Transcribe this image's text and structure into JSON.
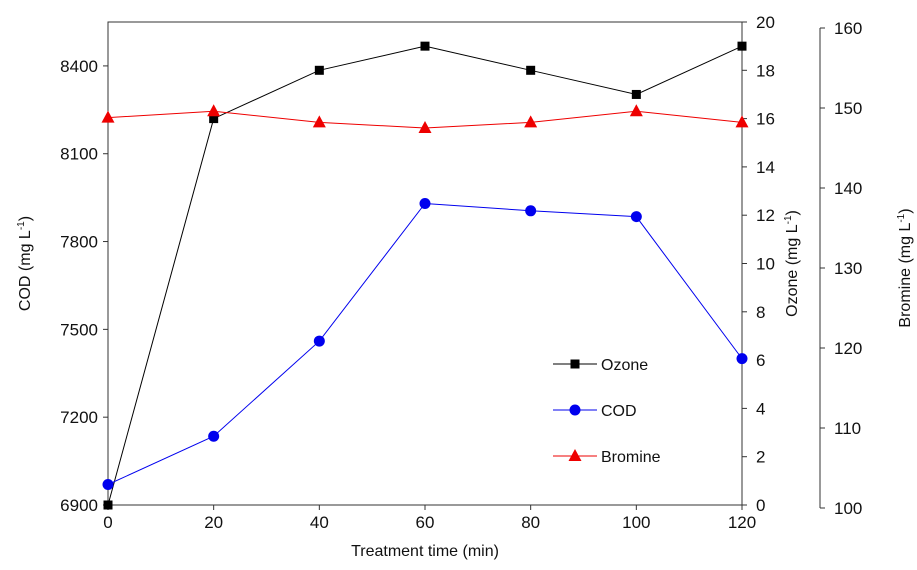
{
  "chart_data": {
    "type": "line",
    "x": [
      0,
      20,
      40,
      60,
      80,
      100,
      120
    ],
    "xlabel": "Treatment time (min)",
    "xlim": [
      0,
      120
    ],
    "xticks": [
      "0",
      "20",
      "40",
      "60",
      "80",
      "100",
      "120"
    ],
    "axes": {
      "left": {
        "label": "COD (mg L",
        "sup": "-1",
        "close": ")",
        "range": [
          6900,
          8550
        ],
        "ticks": [
          "6900",
          "7200",
          "7500",
          "7800",
          "8100",
          "8400"
        ]
      },
      "right1": {
        "label": "Ozone (mg L",
        "sup": "-1",
        "close": ")",
        "range": [
          0,
          20
        ],
        "ticks": [
          "0",
          "2",
          "4",
          "6",
          "8",
          "10",
          "12",
          "14",
          "16",
          "18",
          "20"
        ]
      },
      "right2": {
        "label": "Bromine (mg L",
        "sup": "-1",
        "close": ")",
        "range": [
          100,
          160
        ],
        "ticks": [
          "100",
          "110",
          "120",
          "130",
          "140",
          "150",
          "160"
        ]
      }
    },
    "series": [
      {
        "name": "Ozone",
        "axis": "right1",
        "marker": "square",
        "color": "#000000",
        "values": [
          0,
          16,
          18,
          19,
          18,
          17,
          19
        ]
      },
      {
        "name": "COD",
        "axis": "left",
        "marker": "circle",
        "color": "#0000ee",
        "values": [
          6970,
          7135,
          7460,
          7930,
          7905,
          7885,
          7400
        ]
      },
      {
        "name": "Bromine",
        "axis": "right2",
        "marker": "triangle",
        "color": "#ee0000",
        "values": [
          148.8,
          149.6,
          148.2,
          147.5,
          148.2,
          149.6,
          148.2
        ]
      }
    ],
    "legend": {
      "position": "center-right",
      "entries": [
        "Ozone",
        "COD",
        "Bromine"
      ]
    },
    "grid": false
  }
}
